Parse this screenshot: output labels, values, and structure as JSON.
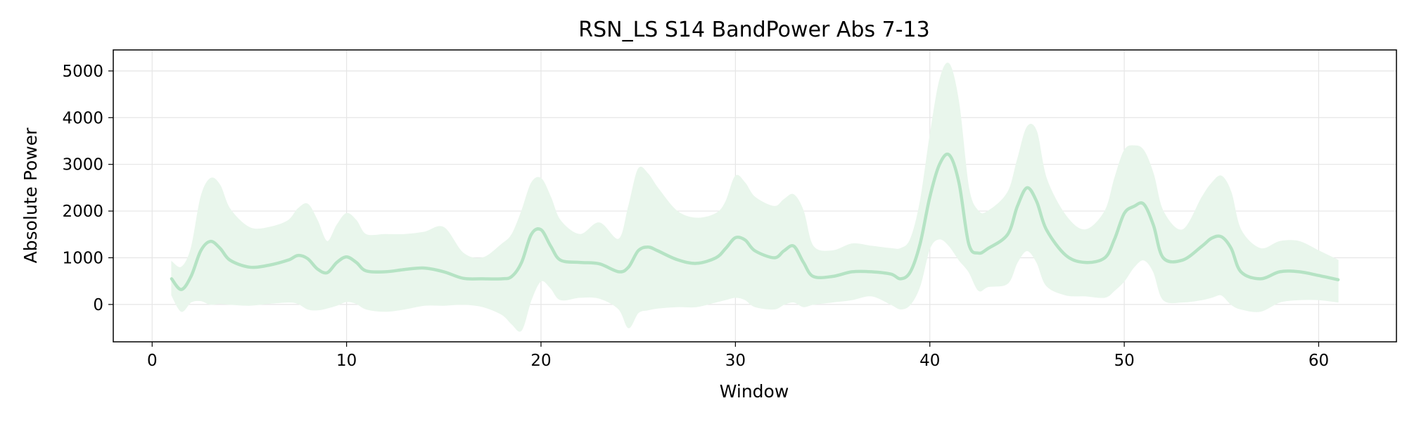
{
  "chart_data": {
    "type": "line",
    "title": "RSN_LS S14 BandPower Abs 7-13",
    "xlabel": "Window",
    "ylabel": "Absolute Power",
    "xlim": [
      -2,
      64
    ],
    "ylim": [
      -800,
      5450
    ],
    "xticks": [
      0,
      10,
      20,
      30,
      40,
      50,
      60
    ],
    "yticks": [
      0,
      1000,
      2000,
      3000,
      4000,
      5000
    ],
    "grid": true,
    "colors": {
      "line": "#b5e3c4",
      "band": "#e9f6ec",
      "grid": "#e6e6e6",
      "axis": "#000000"
    },
    "series": [
      {
        "x": [
          1,
          1.5,
          2,
          2.5,
          3,
          3.5,
          4,
          5,
          6,
          7,
          7.5,
          8,
          8.5,
          9,
          9.5,
          10,
          10.5,
          11,
          12,
          13,
          14,
          15,
          16,
          17,
          18,
          18.5,
          19,
          19.5,
          20,
          20.5,
          21,
          22,
          23,
          24,
          24.5,
          25,
          25.5,
          26,
          27,
          28,
          29,
          29.5,
          30,
          30.5,
          31,
          32,
          32.5,
          33,
          33.5,
          34,
          35,
          36,
          37,
          38,
          38.5,
          39,
          39.5,
          40,
          40.5,
          41,
          41.5,
          42,
          42.5,
          43,
          44,
          44.5,
          45,
          45.5,
          46,
          47,
          48,
          49,
          49.5,
          50,
          50.5,
          51,
          51.5,
          52,
          53,
          54,
          54.5,
          55,
          55.5,
          56,
          57,
          58,
          59,
          60,
          61
        ],
        "y": [
          550,
          320,
          600,
          1150,
          1350,
          1200,
          950,
          800,
          840,
          950,
          1050,
          980,
          760,
          680,
          900,
          1020,
          900,
          720,
          700,
          750,
          780,
          700,
          560,
          550,
          550,
          600,
          900,
          1500,
          1600,
          1250,
          950,
          900,
          870,
          700,
          800,
          1150,
          1230,
          1150,
          960,
          880,
          1000,
          1200,
          1430,
          1380,
          1150,
          1000,
          1150,
          1250,
          900,
          600,
          600,
          700,
          700,
          650,
          550,
          700,
          1300,
          2300,
          3000,
          3200,
          2600,
          1300,
          1100,
          1200,
          1500,
          2100,
          2500,
          2200,
          1600,
          1050,
          900,
          1000,
          1400,
          1950,
          2100,
          2150,
          1700,
          1000,
          950,
          1250,
          1420,
          1450,
          1200,
          700,
          550,
          700,
          700,
          620,
          530
        ],
        "upper": [
          920,
          800,
          1200,
          2300,
          2700,
          2550,
          2050,
          1650,
          1650,
          1800,
          2050,
          2150,
          1800,
          1350,
          1700,
          1950,
          1800,
          1500,
          1500,
          1500,
          1550,
          1650,
          1100,
          1000,
          1300,
          1500,
          2000,
          2600,
          2700,
          2300,
          1800,
          1500,
          1750,
          1400,
          2100,
          2900,
          2800,
          2500,
          2000,
          1850,
          1950,
          2200,
          2750,
          2600,
          2300,
          2100,
          2250,
          2350,
          2000,
          1250,
          1150,
          1300,
          1250,
          1200,
          1200,
          1400,
          2200,
          3600,
          4800,
          5150,
          4300,
          2500,
          2000,
          2000,
          2400,
          3100,
          3800,
          3700,
          2700,
          1900,
          1600,
          2000,
          2700,
          3300,
          3400,
          3300,
          2800,
          2000,
          1600,
          2300,
          2600,
          2750,
          2400,
          1600,
          1200,
          1350,
          1350,
          1150,
          950
        ],
        "lower": [
          200,
          -150,
          50,
          80,
          0,
          20,
          0,
          -20,
          20,
          50,
          20,
          -100,
          -120,
          -80,
          -20,
          60,
          20,
          -100,
          -150,
          -100,
          -20,
          -20,
          0,
          -50,
          -220,
          -420,
          -550,
          100,
          500,
          350,
          100,
          150,
          130,
          -100,
          -500,
          -180,
          -120,
          -80,
          -50,
          -50,
          50,
          100,
          150,
          100,
          -50,
          -100,
          0,
          50,
          -50,
          0,
          50,
          100,
          180,
          0,
          -100,
          0,
          400,
          1200,
          1400,
          1250,
          950,
          700,
          300,
          380,
          450,
          900,
          1150,
          900,
          400,
          200,
          180,
          150,
          300,
          500,
          800,
          950,
          700,
          100,
          50,
          100,
          150,
          200,
          0,
          -100,
          -150,
          50,
          100,
          100,
          50
        ]
      }
    ]
  }
}
